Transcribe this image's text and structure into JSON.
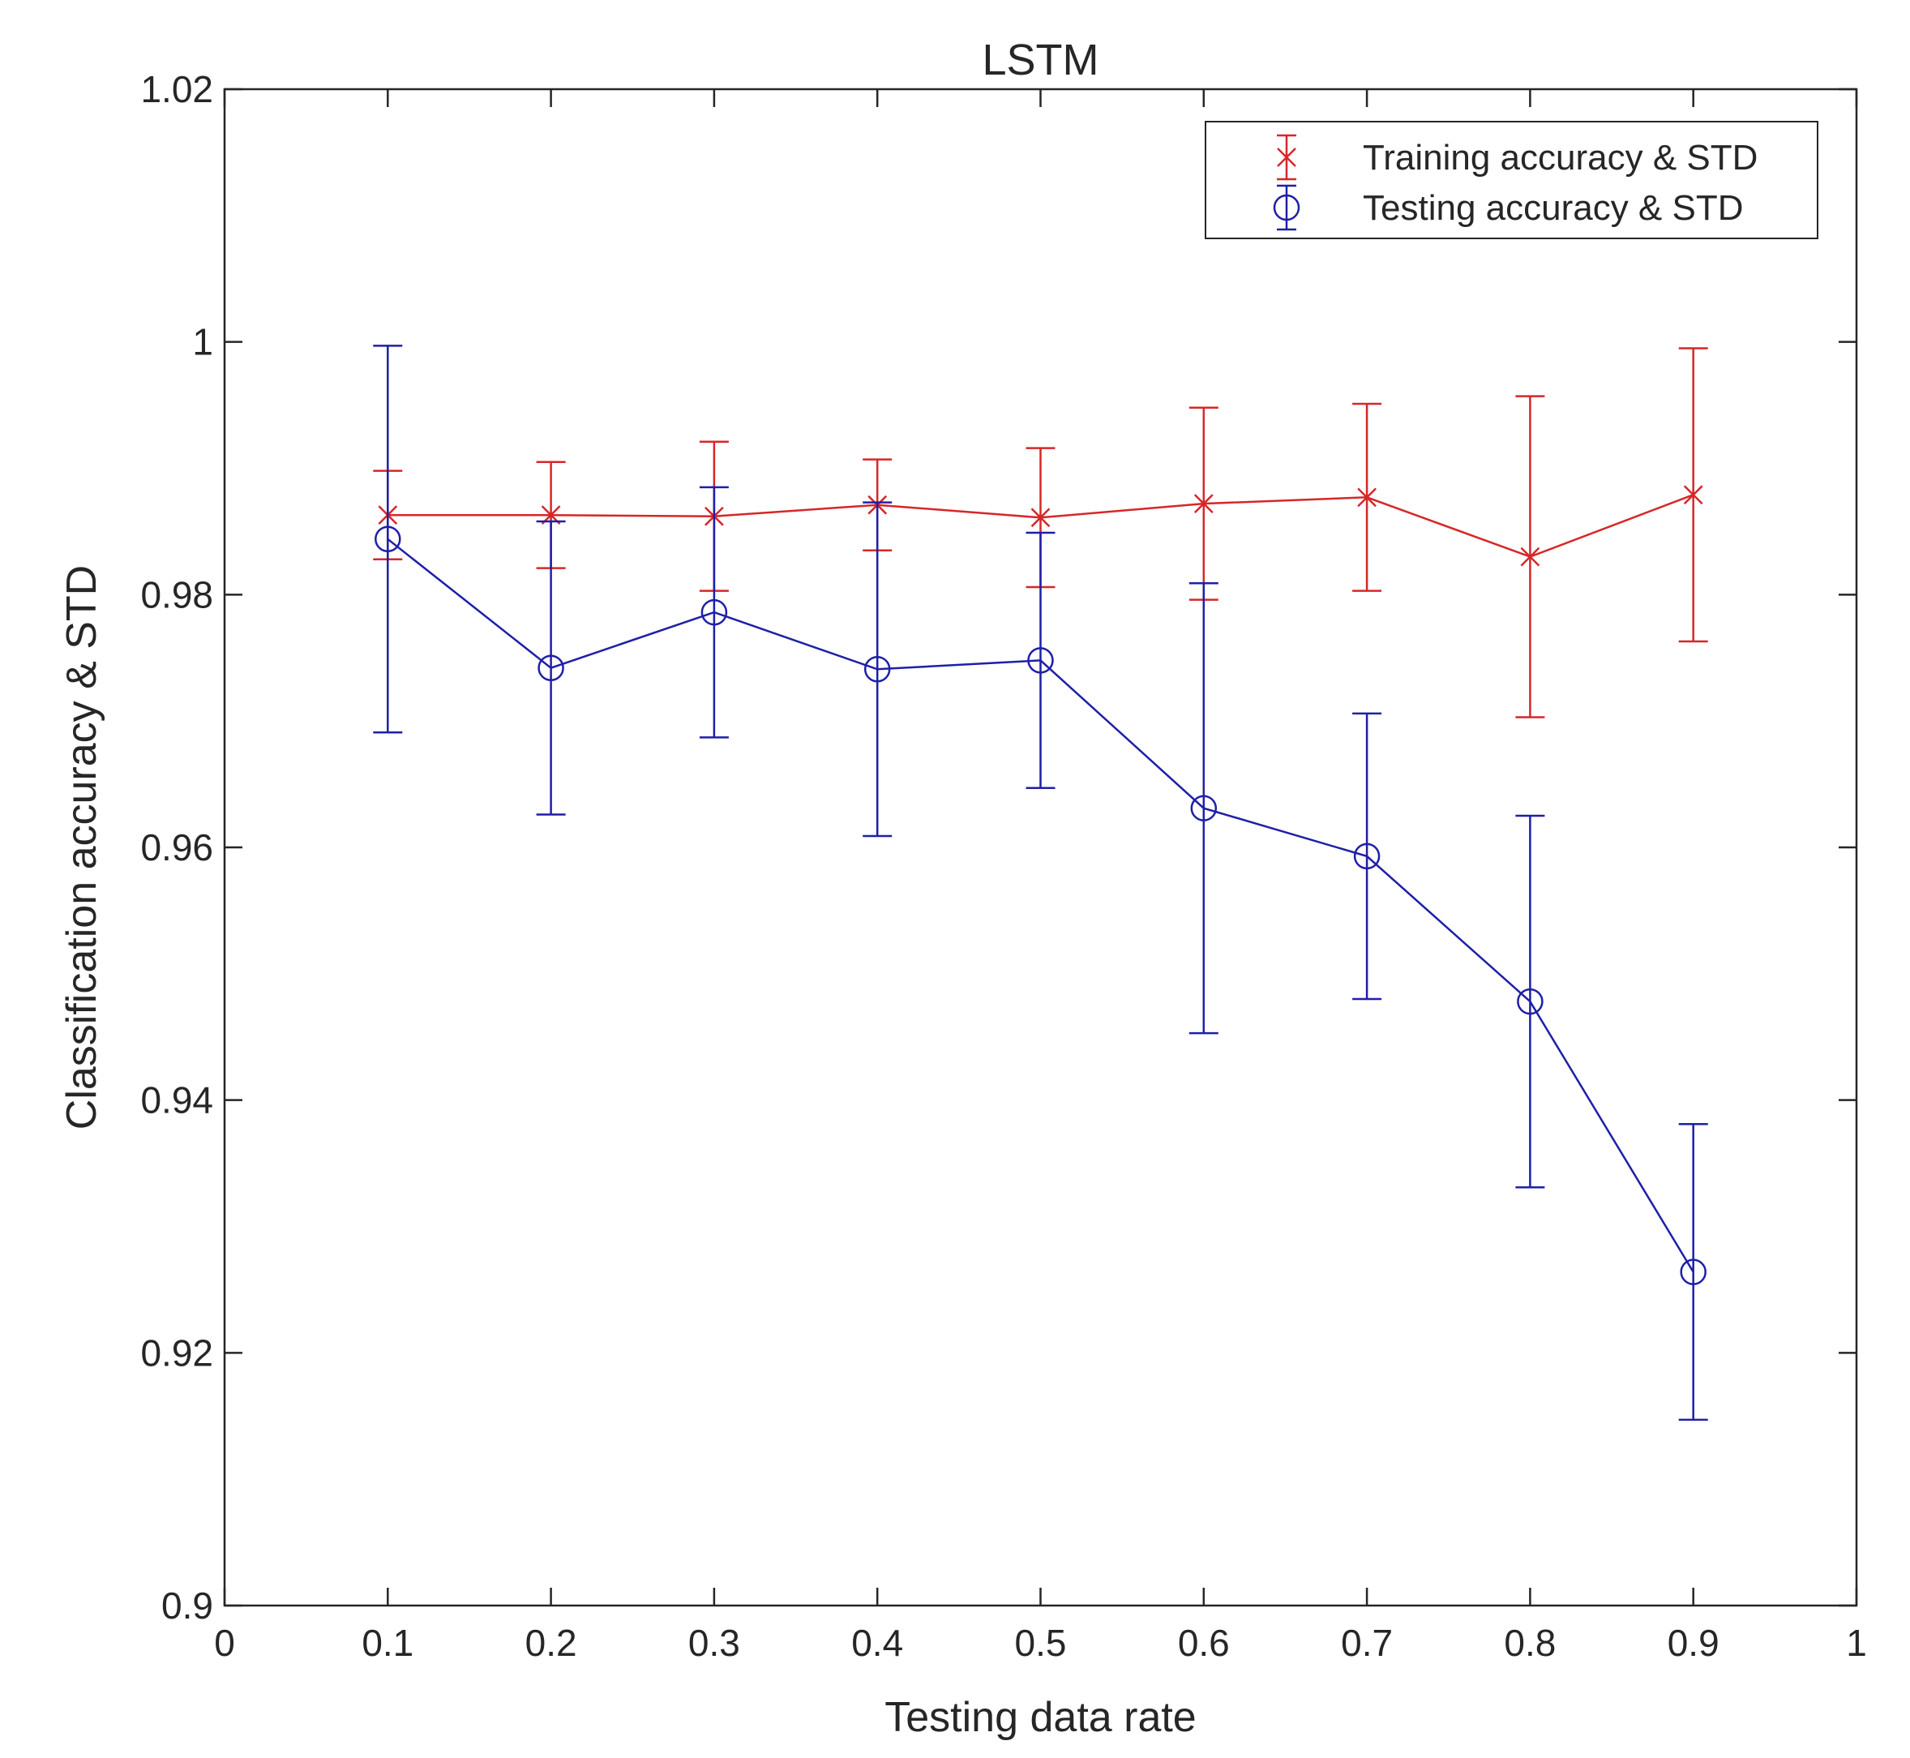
{
  "chart_data": {
    "type": "line",
    "title": "LSTM",
    "xlabel": "Testing data rate",
    "ylabel": "Classification accuracy & STD",
    "xlim": [
      0,
      1
    ],
    "ylim": [
      0.9,
      1.02
    ],
    "xticks": [
      0,
      0.1,
      0.2,
      0.3,
      0.4,
      0.5,
      0.6,
      0.7,
      0.8,
      0.9,
      1
    ],
    "xtick_labels": [
      "0",
      "0.1",
      "0.2",
      "0.3",
      "0.4",
      "0.5",
      "0.6",
      "0.7",
      "0.8",
      "0.9",
      "1"
    ],
    "yticks": [
      0.9,
      0.92,
      0.94,
      0.96,
      0.98,
      1,
      1.02
    ],
    "ytick_labels": [
      "0.9",
      "0.92",
      "0.94",
      "0.96",
      "0.98",
      "1",
      "1.02"
    ],
    "grid": false,
    "legend_position": "top-right",
    "x": [
      0.1,
      0.2,
      0.3,
      0.4,
      0.5,
      0.6,
      0.7,
      0.8,
      0.9
    ],
    "series": [
      {
        "name": "Training accuracy & STD",
        "color": "#d62728",
        "marker": "x",
        "values": [
          0.9863,
          0.9863,
          0.9862,
          0.9871,
          0.9861,
          0.9872,
          0.9877,
          0.983,
          0.9879
        ],
        "std": [
          0.0035,
          0.0042,
          0.0059,
          0.0036,
          0.0055,
          0.0076,
          0.0074,
          0.0127,
          0.0116
        ]
      },
      {
        "name": "Testing accuracy & STD",
        "color": "#1f1fa8",
        "marker": "o",
        "values": [
          0.9844,
          0.9742,
          0.9786,
          0.9741,
          0.9748,
          0.9631,
          0.9593,
          0.9478,
          0.9264
        ],
        "std": [
          0.0153,
          0.0116,
          0.0099,
          0.0132,
          0.0101,
          0.0178,
          0.0113,
          0.0147,
          0.0117
        ]
      }
    ]
  }
}
